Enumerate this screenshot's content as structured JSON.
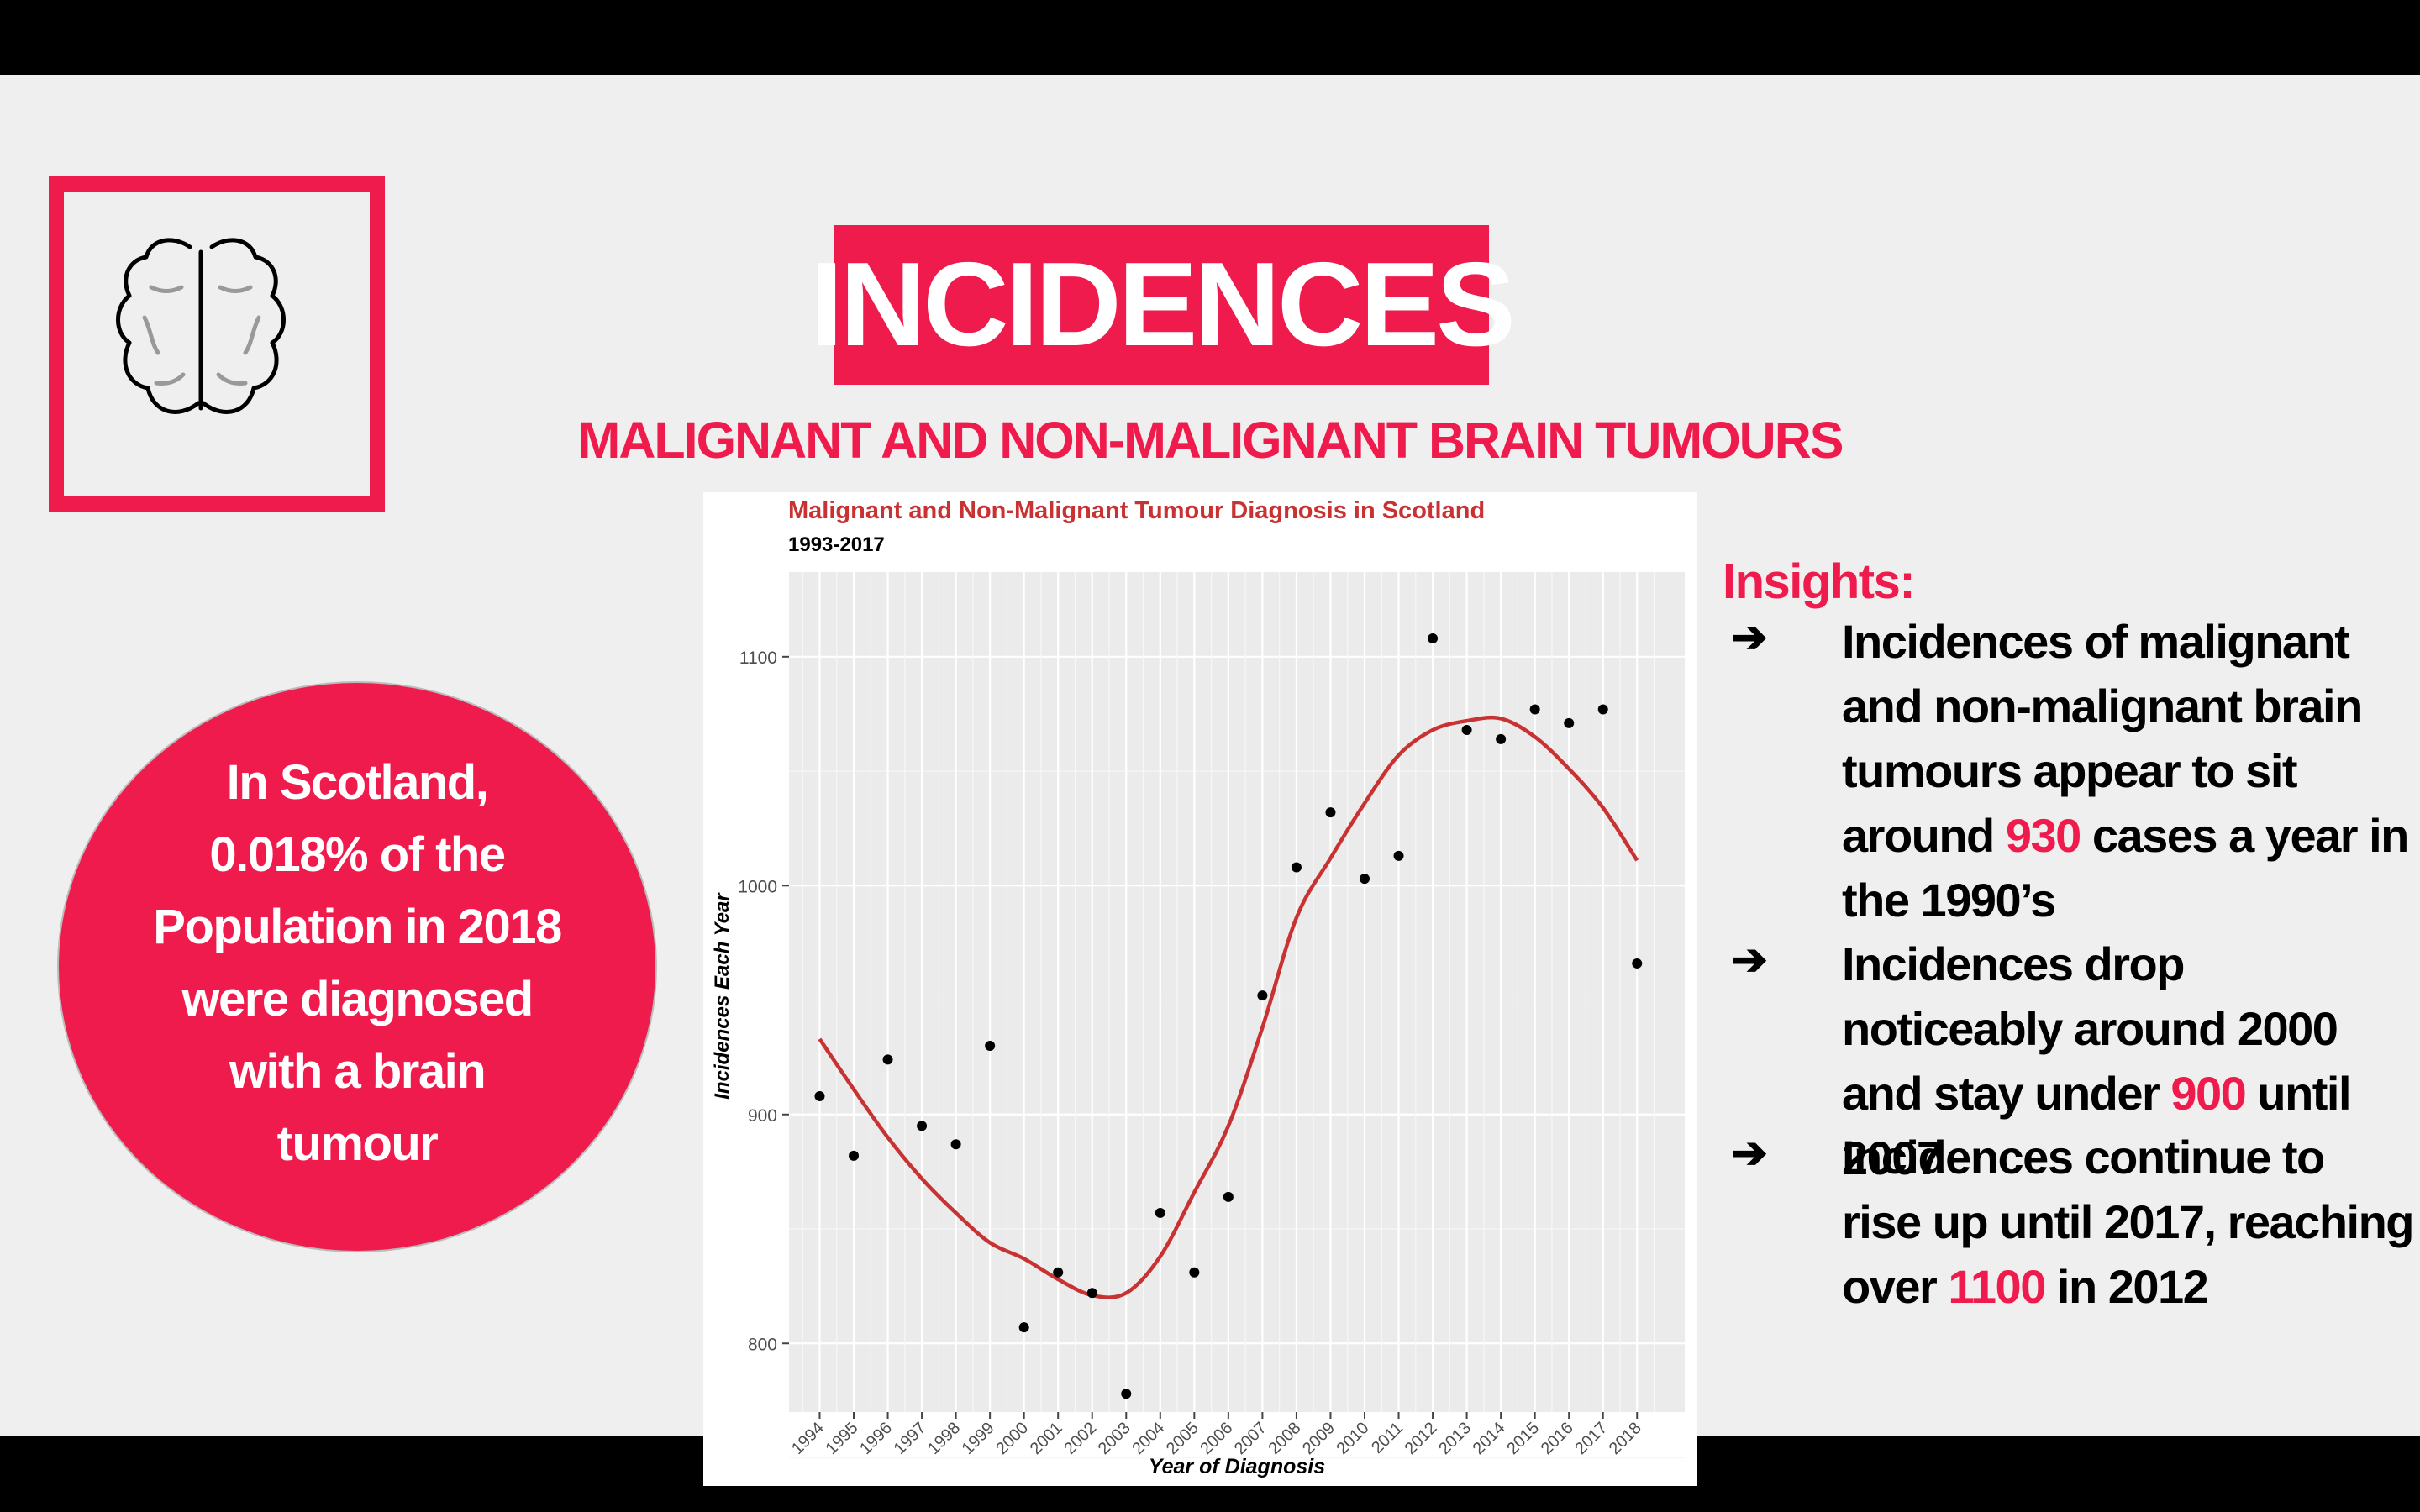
{
  "header": {
    "title": "INCIDENCES",
    "subtitle": "MALIGNANT AND NON-MALIGNANT BRAIN TUMOURS"
  },
  "logo": {
    "icon": "brain-icon"
  },
  "callout": {
    "lines": [
      "In Scotland,",
      "0.018% of the",
      "Population in 2018",
      "were diagnosed",
      "with a brain",
      "tumour"
    ]
  },
  "insights": {
    "heading": "Insights:",
    "items": [
      {
        "pre": "Incidences of malignant and non-malignant brain tumours appear to sit around ",
        "highlight": "930",
        "post": " cases a year in the 1990’s"
      },
      {
        "pre": "Incidences drop noticeably around 2000 and stay under ",
        "highlight": "900",
        "post": " until 2007"
      },
      {
        "pre": "Incidences continue to rise up until 2017, reaching over ",
        "highlight": "1100",
        "post": " in 2012"
      }
    ]
  },
  "colors": {
    "accent": "#ee1b4c",
    "trend": "#c93232",
    "panel": "#ebebeb"
  },
  "chart_data": {
    "type": "scatter",
    "title": "Malignant and Non-Malignant Tumour Diagnosis in Scotland",
    "subtitle": "1993-2017",
    "xlabel": "Year of Diagnosis",
    "ylabel": "Incidences Each Year",
    "x": [
      1994,
      1995,
      1996,
      1997,
      1998,
      1999,
      2000,
      2001,
      2002,
      2003,
      2004,
      2005,
      2006,
      2007,
      2008,
      2009,
      2010,
      2011,
      2012,
      2013,
      2014,
      2015,
      2016,
      2017,
      2018
    ],
    "y": [
      908,
      882,
      924,
      895,
      887,
      930,
      807,
      831,
      822,
      778,
      857,
      831,
      864,
      952,
      1008,
      1032,
      1003,
      1013,
      1108,
      1068,
      1064,
      1077,
      1071,
      1077,
      966
    ],
    "trend": {
      "x": [
        1994,
        1995,
        1996,
        1997,
        1998,
        1999,
        2000,
        2001,
        2002,
        2003,
        2004,
        2005,
        2006,
        2007,
        2008,
        2009,
        2010,
        2011,
        2012,
        2013,
        2014,
        2015,
        2016,
        2017,
        2018
      ],
      "y": [
        933,
        911,
        890,
        872,
        857,
        844,
        837,
        828,
        821,
        822,
        838,
        866,
        895,
        938,
        986,
        1012,
        1036,
        1057,
        1068,
        1072,
        1073,
        1065,
        1051,
        1034,
        1011
      ]
    },
    "x_ticks": [
      "1994",
      "1995",
      "1996",
      "1997",
      "1998",
      "1999",
      "2000",
      "2001",
      "2002",
      "2003",
      "2004",
      "2005",
      "2006",
      "2007",
      "2008",
      "2009",
      "2010",
      "2011",
      "2012",
      "2013",
      "2014",
      "2015",
      "2016",
      "2017",
      "2018"
    ],
    "y_ticks": [
      "800",
      "900",
      "1000",
      "1100"
    ],
    "ylim": [
      770,
      1137
    ],
    "xlim": [
      1993.1,
      2019.4
    ],
    "grid": true
  }
}
